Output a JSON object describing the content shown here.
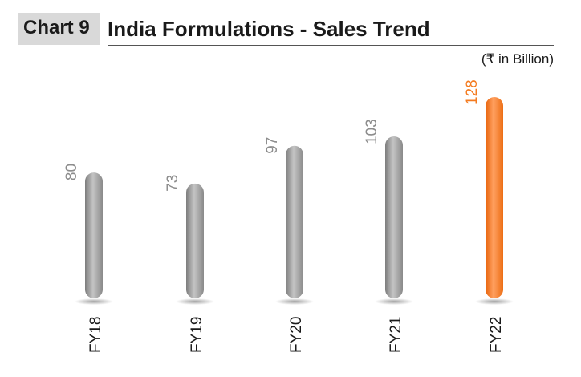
{
  "header": {
    "chart_number": "Chart 9",
    "title": "India Formulations - Sales Trend",
    "unit": "(₹ in Billion)"
  },
  "colors": {
    "bar_gray": "#a6a6a6",
    "bar_highlight": "#f47b20",
    "label_gray": "#8c8c8c",
    "label_highlight": "#f47b20"
  },
  "chart_data": {
    "type": "bar",
    "title": "India Formulations - Sales Trend",
    "ylabel": "",
    "xlabel": "",
    "unit": "(₹ in Billion)",
    "categories": [
      "FY18",
      "FY19",
      "FY20",
      "FY21",
      "FY22"
    ],
    "values": [
      80,
      73,
      97,
      103,
      128
    ],
    "highlight_index": 4,
    "ylim": [
      0,
      128
    ],
    "grid": false,
    "legend": "none",
    "data_labels": true
  }
}
